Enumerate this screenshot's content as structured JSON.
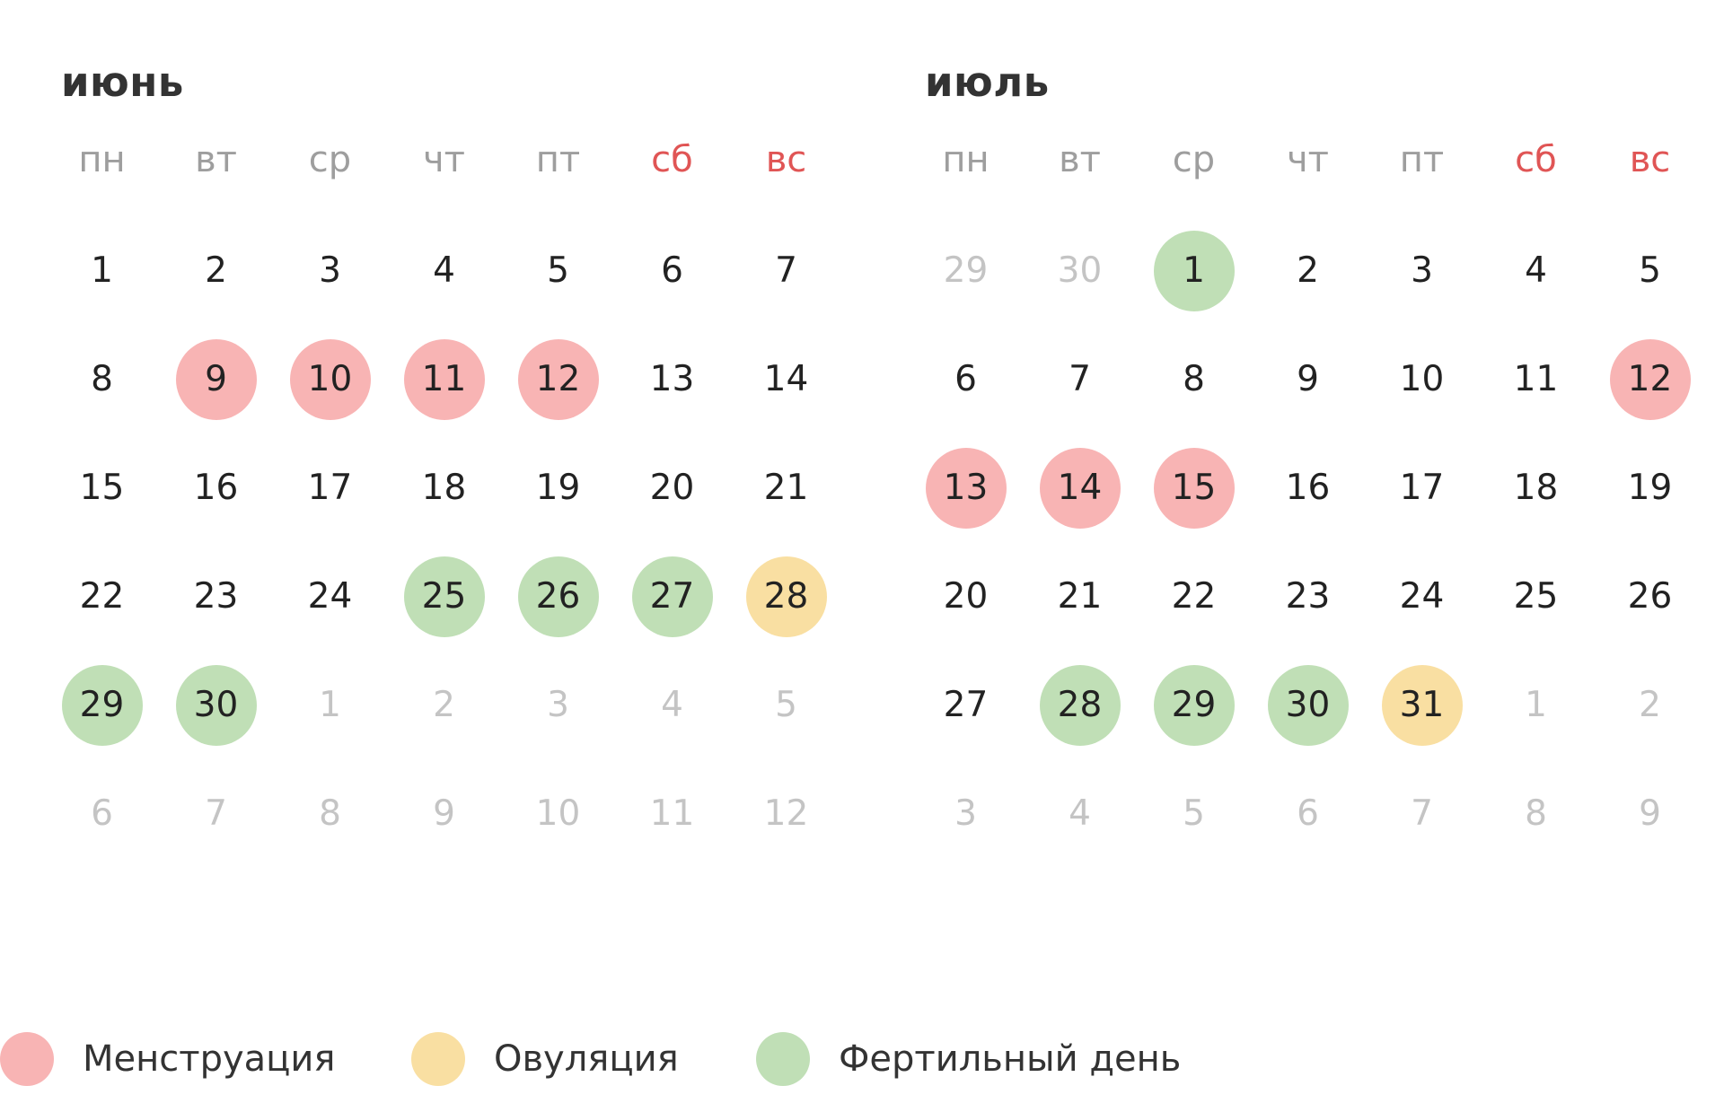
{
  "colors": {
    "menstruation": "#f8b4b4",
    "ovulation": "#f9dfa2",
    "fertile": "#c0dfb6",
    "weekend_label": "#e05555",
    "other_month_day": "#c4c4c4"
  },
  "weekday_labels": [
    "пн",
    "вт",
    "ср",
    "чт",
    "пт",
    "сб",
    "вс"
  ],
  "months": [
    {
      "title": "июнь",
      "days": [
        {
          "label": "1"
        },
        {
          "label": "2"
        },
        {
          "label": "3"
        },
        {
          "label": "4"
        },
        {
          "label": "5"
        },
        {
          "label": "6"
        },
        {
          "label": "7"
        },
        {
          "label": "8"
        },
        {
          "label": "9",
          "mark": "menstruation"
        },
        {
          "label": "10",
          "mark": "menstruation"
        },
        {
          "label": "11",
          "mark": "menstruation"
        },
        {
          "label": "12",
          "mark": "menstruation"
        },
        {
          "label": "13"
        },
        {
          "label": "14"
        },
        {
          "label": "15"
        },
        {
          "label": "16"
        },
        {
          "label": "17"
        },
        {
          "label": "18"
        },
        {
          "label": "19"
        },
        {
          "label": "20"
        },
        {
          "label": "21"
        },
        {
          "label": "22"
        },
        {
          "label": "23"
        },
        {
          "label": "24"
        },
        {
          "label": "25",
          "mark": "fertile"
        },
        {
          "label": "26",
          "mark": "fertile"
        },
        {
          "label": "27",
          "mark": "fertile"
        },
        {
          "label": "28",
          "mark": "ovulation"
        },
        {
          "label": "29",
          "mark": "fertile"
        },
        {
          "label": "30",
          "mark": "fertile"
        },
        {
          "label": "1",
          "other": true
        },
        {
          "label": "2",
          "other": true
        },
        {
          "label": "3",
          "other": true
        },
        {
          "label": "4",
          "other": true
        },
        {
          "label": "5",
          "other": true
        },
        {
          "label": "6",
          "other": true
        },
        {
          "label": "7",
          "other": true
        },
        {
          "label": "8",
          "other": true
        },
        {
          "label": "9",
          "other": true
        },
        {
          "label": "10",
          "other": true
        },
        {
          "label": "11",
          "other": true
        },
        {
          "label": "12",
          "other": true
        }
      ]
    },
    {
      "title": "июль",
      "days": [
        {
          "label": "29",
          "other": true
        },
        {
          "label": "30",
          "other": true
        },
        {
          "label": "1",
          "mark": "fertile"
        },
        {
          "label": "2"
        },
        {
          "label": "3"
        },
        {
          "label": "4"
        },
        {
          "label": "5"
        },
        {
          "label": "6"
        },
        {
          "label": "7"
        },
        {
          "label": "8"
        },
        {
          "label": "9"
        },
        {
          "label": "10"
        },
        {
          "label": "11"
        },
        {
          "label": "12",
          "mark": "menstruation"
        },
        {
          "label": "13",
          "mark": "menstruation"
        },
        {
          "label": "14",
          "mark": "menstruation"
        },
        {
          "label": "15",
          "mark": "menstruation"
        },
        {
          "label": "16"
        },
        {
          "label": "17"
        },
        {
          "label": "18"
        },
        {
          "label": "19"
        },
        {
          "label": "20"
        },
        {
          "label": "21"
        },
        {
          "label": "22"
        },
        {
          "label": "23"
        },
        {
          "label": "24"
        },
        {
          "label": "25"
        },
        {
          "label": "26"
        },
        {
          "label": "27"
        },
        {
          "label": "28",
          "mark": "fertile"
        },
        {
          "label": "29",
          "mark": "fertile"
        },
        {
          "label": "30",
          "mark": "fertile"
        },
        {
          "label": "31",
          "mark": "ovulation"
        },
        {
          "label": "1",
          "other": true
        },
        {
          "label": "2",
          "other": true
        },
        {
          "label": "3",
          "other": true
        },
        {
          "label": "4",
          "other": true
        },
        {
          "label": "5",
          "other": true
        },
        {
          "label": "6",
          "other": true
        },
        {
          "label": "7",
          "other": true
        },
        {
          "label": "8",
          "other": true
        },
        {
          "label": "9",
          "other": true
        }
      ]
    }
  ],
  "legend": {
    "menstruation": "Менструация",
    "ovulation": "Овуляция",
    "fertile": "Фертильный день"
  }
}
